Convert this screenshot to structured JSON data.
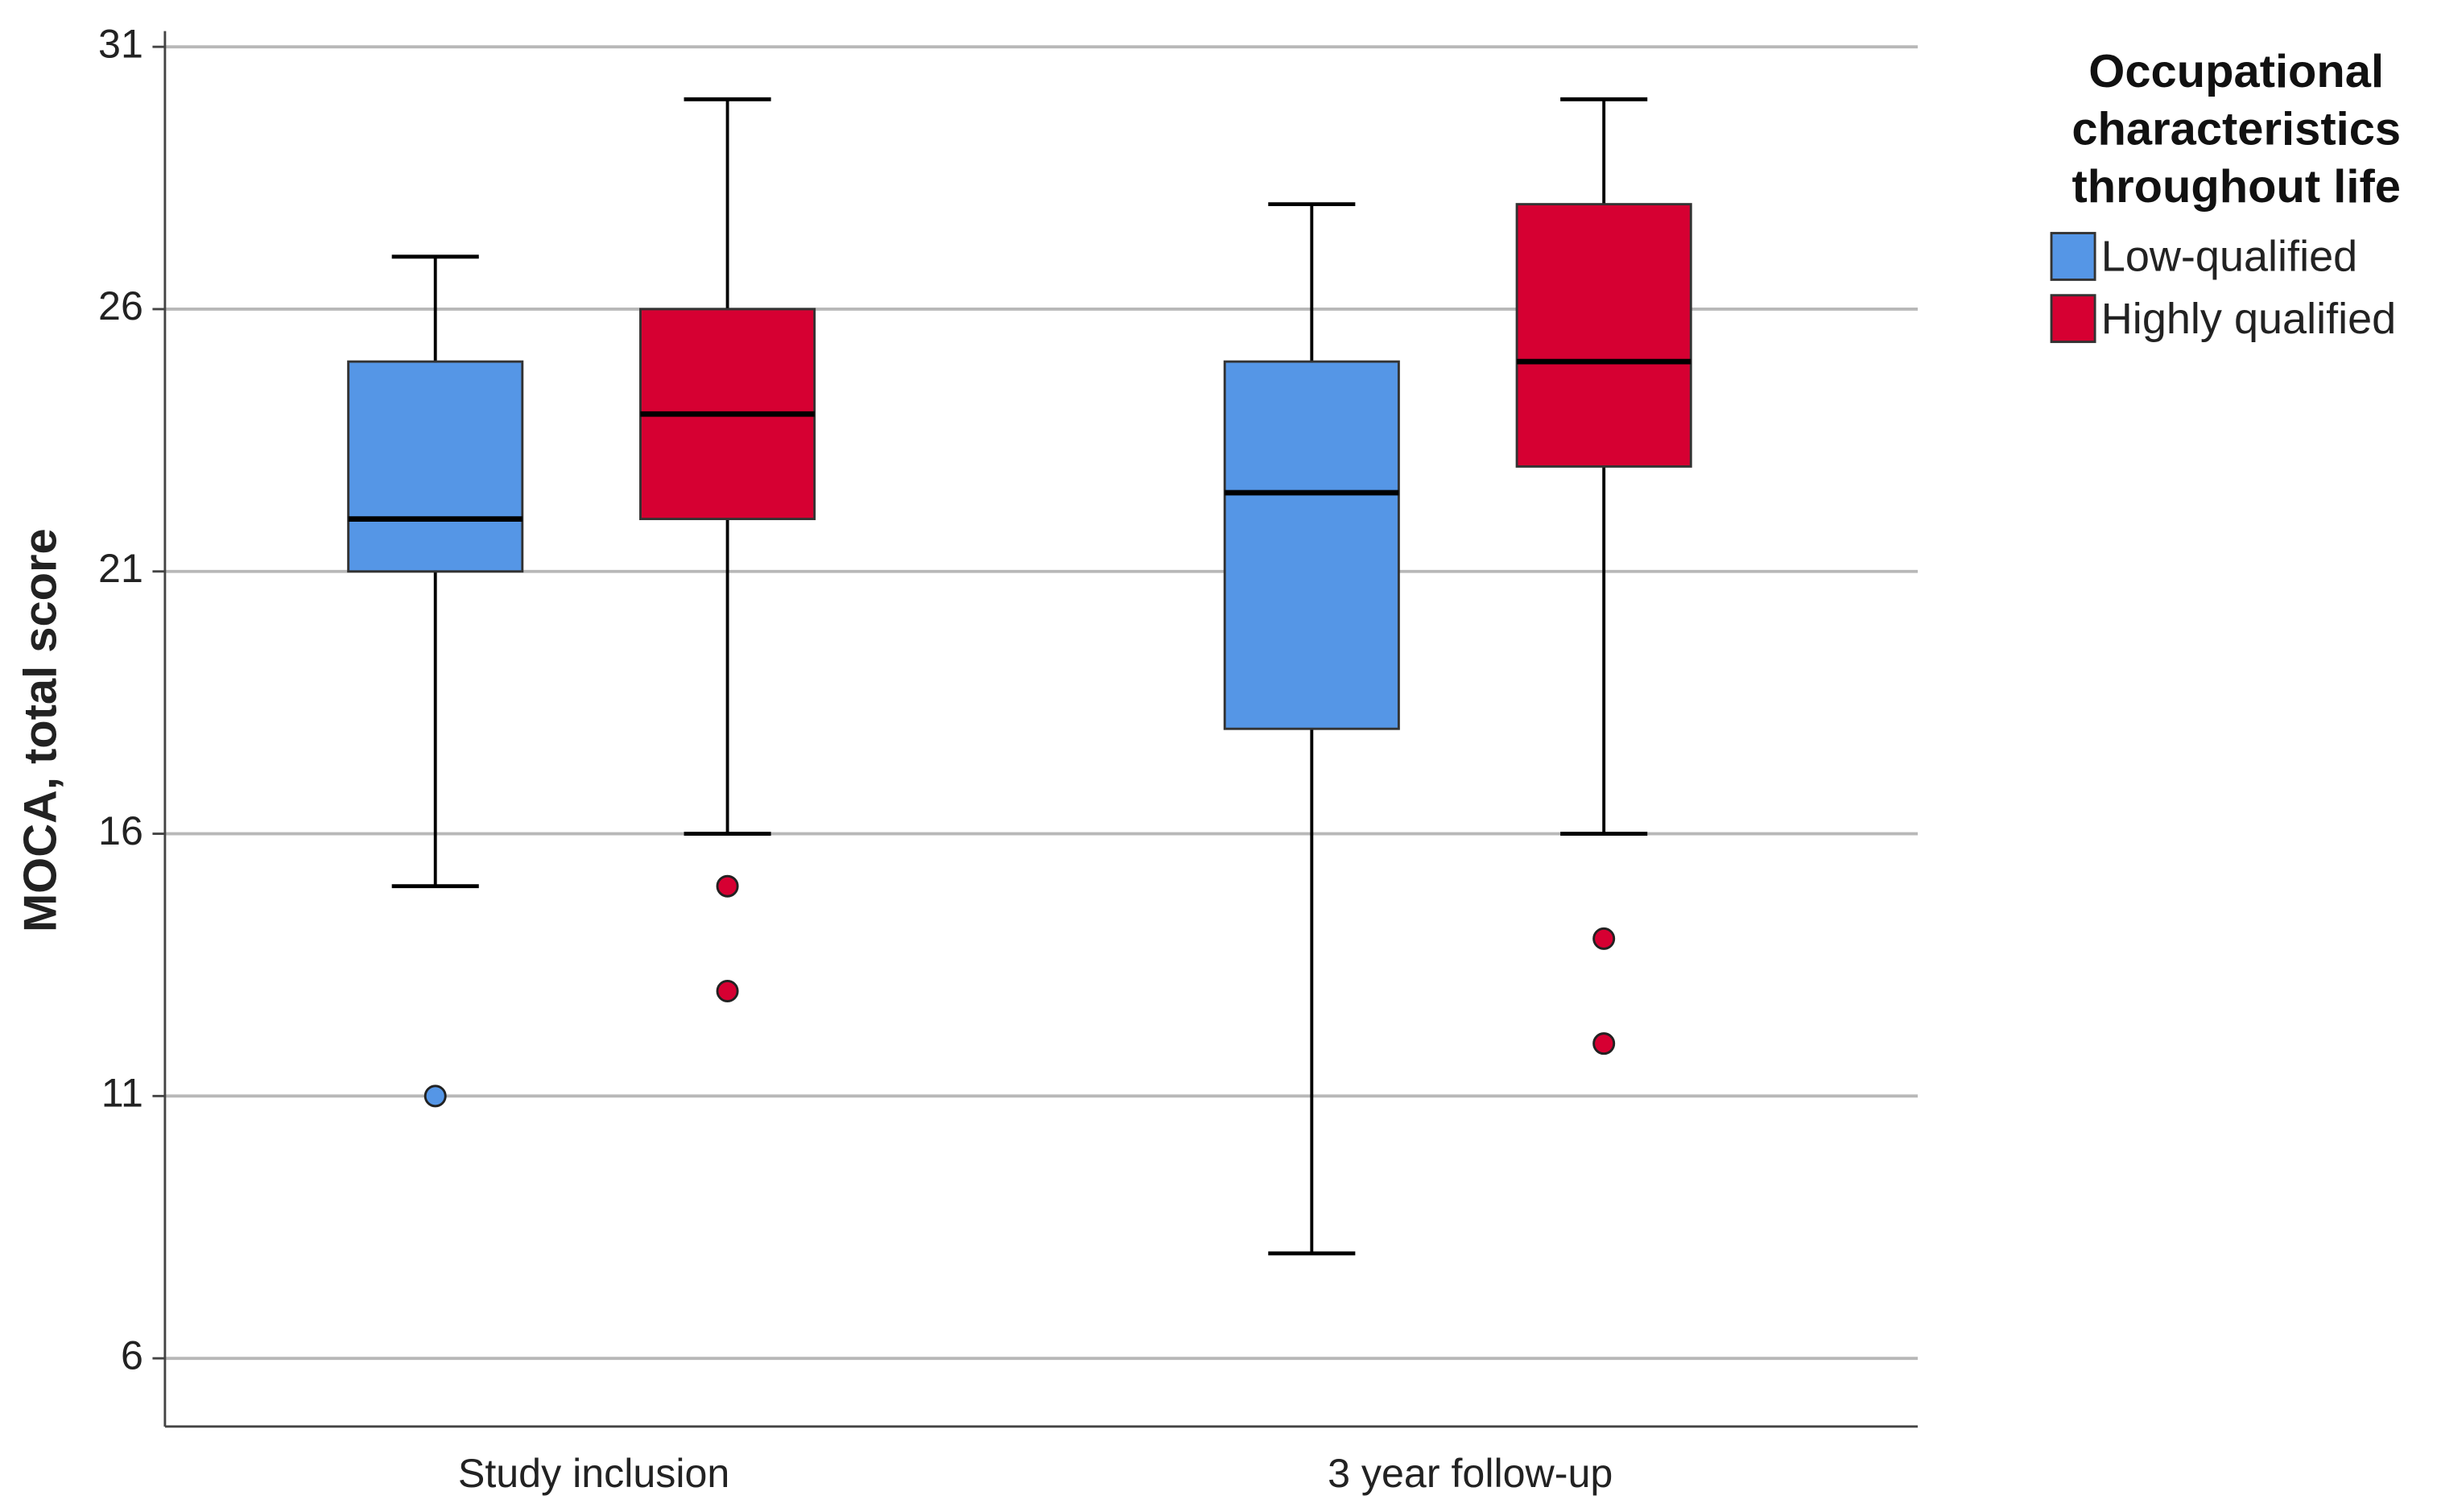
{
  "chart_data": {
    "type": "boxplot",
    "y_label": "MOCA, total score",
    "legend_title": "Occupational characteristics throughout life",
    "categories": [
      "Study inclusion",
      "3 year follow-up"
    ],
    "ylim": [
      4.7,
      31.3
    ],
    "yticks": [
      6,
      11,
      16,
      21,
      26,
      31
    ],
    "grid": true,
    "legend": "right",
    "series": [
      {
        "name": "Low-qualified",
        "color": "#5596e6",
        "whisker_low": [
          15,
          8
        ],
        "q1": [
          21,
          18
        ],
        "median": [
          22,
          22.5
        ],
        "q3": [
          25,
          25
        ],
        "whisker_high": [
          27,
          28
        ],
        "outliers": [
          [
            11
          ],
          []
        ]
      },
      {
        "name": "Highly qualified",
        "color": "#d60032",
        "whisker_low": [
          16,
          16
        ],
        "q1": [
          22,
          23
        ],
        "median": [
          24,
          25
        ],
        "q3": [
          26,
          28
        ],
        "whisker_high": [
          30,
          30
        ],
        "outliers": [
          [
            15,
            13
          ],
          [
            14,
            12
          ]
        ]
      }
    ]
  }
}
